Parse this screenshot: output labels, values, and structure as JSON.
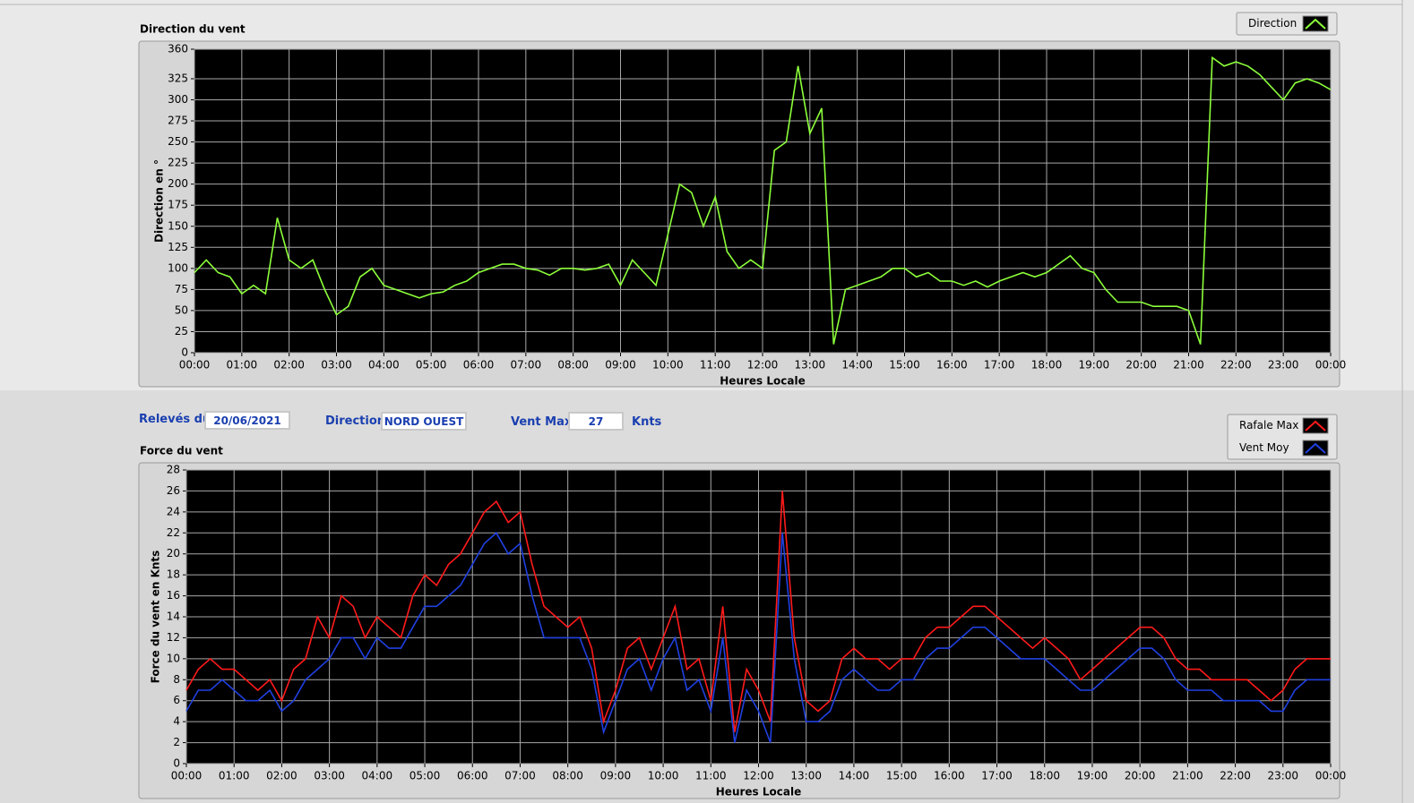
{
  "chart_data": [
    {
      "type": "line",
      "title": "Direction du vent",
      "y_label": "Direction en °",
      "x_label": "Heures Locale",
      "x": [
        0,
        0.25,
        0.5,
        0.75,
        1,
        1.25,
        1.5,
        1.75,
        2,
        2.25,
        2.5,
        2.75,
        3,
        3.25,
        3.5,
        3.75,
        4,
        4.25,
        4.5,
        4.75,
        5,
        5.25,
        5.5,
        5.75,
        6,
        6.25,
        6.5,
        6.75,
        7,
        7.25,
        7.5,
        7.75,
        8,
        8.25,
        8.5,
        8.75,
        9,
        9.25,
        9.5,
        9.75,
        10,
        10.25,
        10.5,
        10.75,
        11,
        11.25,
        11.5,
        11.75,
        12,
        12.25,
        12.5,
        12.75,
        13,
        13.25,
        13.5,
        13.75,
        14,
        14.25,
        14.5,
        14.75,
        15,
        15.25,
        15.5,
        15.75,
        16,
        16.25,
        16.5,
        16.75,
        17,
        17.25,
        17.5,
        17.75,
        18,
        18.25,
        18.5,
        18.75,
        19,
        19.25,
        19.5,
        19.75,
        20,
        20.25,
        20.5,
        20.75,
        21,
        21.25,
        21.5,
        21.75,
        22,
        22.25,
        22.5,
        22.75,
        23,
        23.25,
        23.5,
        23.75,
        24
      ],
      "xlim": [
        0,
        24
      ],
      "xticks": [
        {
          "value": 0,
          "label": "00:00"
        },
        {
          "value": 1,
          "label": "01:00"
        },
        {
          "value": 2,
          "label": "02:00"
        },
        {
          "value": 3,
          "label": "03:00"
        },
        {
          "value": 4,
          "label": "04:00"
        },
        {
          "value": 5,
          "label": "05:00"
        },
        {
          "value": 6,
          "label": "06:00"
        },
        {
          "value": 7,
          "label": "07:00"
        },
        {
          "value": 8,
          "label": "08:00"
        },
        {
          "value": 9,
          "label": "09:00"
        },
        {
          "value": 10,
          "label": "10:00"
        },
        {
          "value": 11,
          "label": "11:00"
        },
        {
          "value": 12,
          "label": "12:00"
        },
        {
          "value": 13,
          "label": "13:00"
        },
        {
          "value": 14,
          "label": "14:00"
        },
        {
          "value": 15,
          "label": "15:00"
        },
        {
          "value": 16,
          "label": "16:00"
        },
        {
          "value": 17,
          "label": "17:00"
        },
        {
          "value": 18,
          "label": "18:00"
        },
        {
          "value": 19,
          "label": "19:00"
        },
        {
          "value": 20,
          "label": "20:00"
        },
        {
          "value": 21,
          "label": "21:00"
        },
        {
          "value": 22,
          "label": "22:00"
        },
        {
          "value": 23,
          "label": "23:00"
        },
        {
          "value": 24,
          "label": "00:00"
        }
      ],
      "ylim": [
        0,
        360
      ],
      "yticks": [
        0,
        25,
        50,
        75,
        100,
        125,
        150,
        175,
        200,
        225,
        250,
        275,
        300,
        325,
        360
      ],
      "grid": true,
      "legend": "top-right",
      "series": [
        {
          "name": "Direction",
          "color": "#8cff3a",
          "values": [
            95,
            110,
            95,
            90,
            70,
            80,
            70,
            160,
            110,
            100,
            110,
            75,
            45,
            55,
            90,
            100,
            80,
            75,
            70,
            65,
            70,
            72,
            80,
            85,
            95,
            100,
            105,
            105,
            100,
            98,
            92,
            100,
            100,
            98,
            100,
            105,
            80,
            110,
            95,
            80,
            140,
            200,
            190,
            150,
            185,
            120,
            100,
            110,
            100,
            240,
            250,
            340,
            260,
            290,
            10,
            75,
            80,
            85,
            90,
            100,
            100,
            90,
            95,
            85,
            85,
            80,
            85,
            78,
            85,
            90,
            95,
            90,
            95,
            105,
            115,
            100,
            95,
            75,
            60,
            60,
            60,
            55,
            55,
            55,
            50,
            10,
            350,
            340,
            345,
            340,
            330,
            315,
            300,
            320,
            325,
            320,
            312
          ]
        }
      ]
    },
    {
      "type": "line",
      "title": "Force du vent",
      "y_label": "Force du vent en Knts",
      "x_label": "Heures Locale",
      "x": [
        0,
        0.25,
        0.5,
        0.75,
        1,
        1.25,
        1.5,
        1.75,
        2,
        2.25,
        2.5,
        2.75,
        3,
        3.25,
        3.5,
        3.75,
        4,
        4.25,
        4.5,
        4.75,
        5,
        5.25,
        5.5,
        5.75,
        6,
        6.25,
        6.5,
        6.75,
        7,
        7.25,
        7.5,
        7.75,
        8,
        8.25,
        8.5,
        8.75,
        9,
        9.25,
        9.5,
        9.75,
        10,
        10.25,
        10.5,
        10.75,
        11,
        11.25,
        11.5,
        11.75,
        12,
        12.25,
        12.5,
        12.75,
        13,
        13.25,
        13.5,
        13.75,
        14,
        14.25,
        14.5,
        14.75,
        15,
        15.25,
        15.5,
        15.75,
        16,
        16.25,
        16.5,
        16.75,
        17,
        17.25,
        17.5,
        17.75,
        18,
        18.25,
        18.5,
        18.75,
        19,
        19.25,
        19.5,
        19.75,
        20,
        20.25,
        20.5,
        20.75,
        21,
        21.25,
        21.5,
        21.75,
        22,
        22.25,
        22.5,
        22.75,
        23,
        23.25,
        23.5,
        23.75,
        24
      ],
      "xlim": [
        0,
        24
      ],
      "xticks": [
        {
          "value": 0,
          "label": "00:00"
        },
        {
          "value": 1,
          "label": "01:00"
        },
        {
          "value": 2,
          "label": "02:00"
        },
        {
          "value": 3,
          "label": "03:00"
        },
        {
          "value": 4,
          "label": "04:00"
        },
        {
          "value": 5,
          "label": "05:00"
        },
        {
          "value": 6,
          "label": "06:00"
        },
        {
          "value": 7,
          "label": "07:00"
        },
        {
          "value": 8,
          "label": "08:00"
        },
        {
          "value": 9,
          "label": "09:00"
        },
        {
          "value": 10,
          "label": "10:00"
        },
        {
          "value": 11,
          "label": "11:00"
        },
        {
          "value": 12,
          "label": "12:00"
        },
        {
          "value": 13,
          "label": "13:00"
        },
        {
          "value": 14,
          "label": "14:00"
        },
        {
          "value": 15,
          "label": "15:00"
        },
        {
          "value": 16,
          "label": "16:00"
        },
        {
          "value": 17,
          "label": "17:00"
        },
        {
          "value": 18,
          "label": "18:00"
        },
        {
          "value": 19,
          "label": "19:00"
        },
        {
          "value": 20,
          "label": "20:00"
        },
        {
          "value": 21,
          "label": "21:00"
        },
        {
          "value": 22,
          "label": "22:00"
        },
        {
          "value": 23,
          "label": "23:00"
        },
        {
          "value": 24,
          "label": "00:00"
        }
      ],
      "ylim": [
        0,
        28
      ],
      "yticks": [
        0,
        2,
        4,
        6,
        8,
        10,
        12,
        14,
        16,
        18,
        20,
        22,
        24,
        26,
        28
      ],
      "grid": true,
      "legend": "top-right",
      "series": [
        {
          "name": "Rafale Max",
          "color": "#ff1a1a",
          "values": [
            7,
            9,
            10,
            9,
            9,
            8,
            7,
            8,
            6,
            9,
            10,
            14,
            12,
            16,
            15,
            12,
            14,
            13,
            12,
            16,
            18,
            17,
            19,
            20,
            22,
            24,
            25,
            23,
            24,
            19,
            15,
            14,
            13,
            14,
            11,
            4,
            7,
            11,
            12,
            9,
            12,
            15,
            9,
            10,
            6,
            15,
            3,
            9,
            7,
            4,
            26,
            12,
            6,
            5,
            6,
            10,
            11,
            10,
            10,
            9,
            10,
            10,
            12,
            13,
            13,
            14,
            15,
            15,
            14,
            13,
            12,
            11,
            12,
            11,
            10,
            8,
            9,
            10,
            11,
            12,
            13,
            13,
            12,
            10,
            9,
            9,
            8,
            8,
            8,
            8,
            7,
            6,
            7,
            9,
            10,
            10,
            10
          ]
        },
        {
          "name": "Vent Moy",
          "color": "#2040e0",
          "values": [
            5,
            7,
            7,
            8,
            7,
            6,
            6,
            7,
            5,
            6,
            8,
            9,
            10,
            12,
            12,
            10,
            12,
            11,
            11,
            13,
            15,
            15,
            16,
            17,
            19,
            21,
            22,
            20,
            21,
            16,
            12,
            12,
            12,
            12,
            9,
            3,
            6,
            9,
            10,
            7,
            10,
            12,
            7,
            8,
            5,
            12,
            2,
            7,
            5,
            2,
            22,
            10,
            4,
            4,
            5,
            8,
            9,
            8,
            7,
            7,
            8,
            8,
            10,
            11,
            11,
            12,
            13,
            13,
            12,
            11,
            10,
            10,
            10,
            9,
            8,
            7,
            7,
            8,
            9,
            10,
            11,
            11,
            10,
            8,
            7,
            7,
            7,
            6,
            6,
            6,
            6,
            5,
            5,
            7,
            8,
            8,
            8
          ]
        }
      ]
    }
  ],
  "controls": {
    "date_label": "Relevés du",
    "date": "20/06/2021",
    "direction_label": "Direction",
    "direction": "NORD OUEST",
    "max_label": "Vent Max",
    "max": 27,
    "unit": "Knts"
  }
}
